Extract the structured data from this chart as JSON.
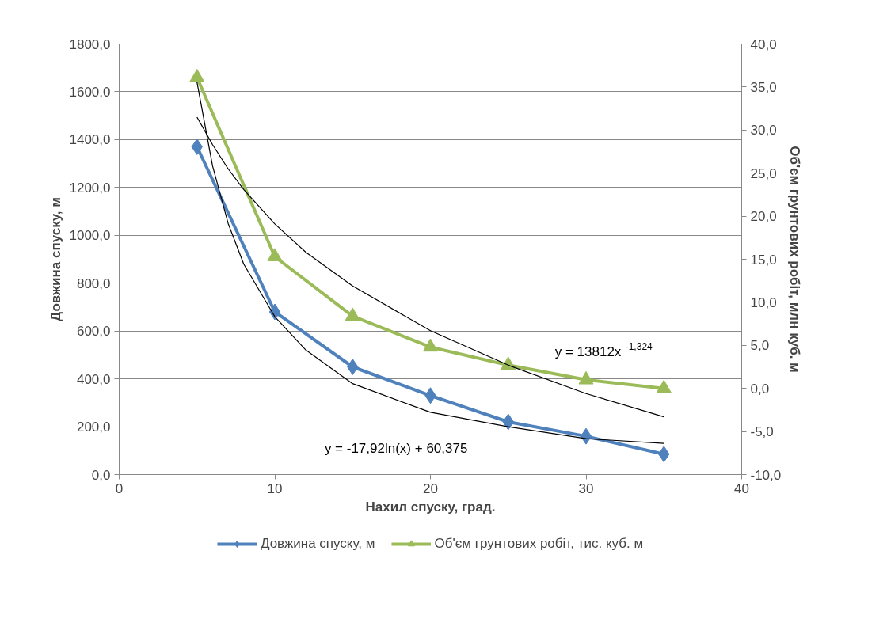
{
  "chart_data": {
    "type": "line",
    "xlabel": "Нахил спуску, град.",
    "ylabel": "Довжина спуску, м",
    "y2label": "Об'єм грунтових робіт, млн куб. м",
    "x": [
      5,
      10,
      15,
      20,
      25,
      30,
      35
    ],
    "series": [
      {
        "name": "Довжина спуску, м",
        "color": "#4f81bd",
        "marker": "diamond",
        "values": [
          1370,
          680,
          450,
          330,
          220,
          160,
          85
        ]
      },
      {
        "name": "Об'єм грунтових робіт, тис. куб. м",
        "color": "#9bbb59",
        "marker": "triangle",
        "axis": "y2",
        "values": [
          36.1,
          15.3,
          8.4,
          4.8,
          2.7,
          1.0,
          0.0
        ]
      },
      {
        "color": "#000000",
        "marker": "none",
        "x": [
          5,
          6,
          7,
          8,
          10,
          12,
          15,
          20,
          25,
          30,
          35
        ],
        "values": [
          1640,
          1290,
          1050,
          880,
          660,
          520,
          380,
          260,
          200,
          150,
          130
        ]
      },
      {
        "color": "#000000",
        "marker": "none",
        "axis": "y2",
        "x": [
          5,
          6,
          7,
          8,
          10,
          12,
          15,
          20,
          25,
          30,
          35
        ],
        "values": [
          31.5,
          28.3,
          25.5,
          23.1,
          19.1,
          15.8,
          11.9,
          6.7,
          2.7,
          -0.6,
          -3.3
        ]
      }
    ],
    "xlim": [
      0,
      40
    ],
    "xticks": [
      0,
      10,
      20,
      30,
      40
    ],
    "ylim": [
      0,
      1800
    ],
    "yticks": [
      {
        "value": 0,
        "label": "0,0"
      },
      {
        "value": 200,
        "label": "200,0"
      },
      {
        "value": 400,
        "label": "400,0"
      },
      {
        "value": 600,
        "label": "600,0"
      },
      {
        "value": 800,
        "label": "800,0"
      },
      {
        "value": 1000,
        "label": "1000,0"
      },
      {
        "value": 1200,
        "label": "1200,0"
      },
      {
        "value": 1400,
        "label": "1400,0"
      },
      {
        "value": 1600,
        "label": "1600,0"
      },
      {
        "value": 1800,
        "label": "1800,0"
      }
    ],
    "y2lim": [
      -10,
      40
    ],
    "y2ticks": [
      {
        "value": -10,
        "label": "-10,0"
      },
      {
        "value": -5,
        "label": "-5,0"
      },
      {
        "value": 0,
        "label": "0,0"
      },
      {
        "value": 5,
        "label": "5,0"
      },
      {
        "value": 10,
        "label": "10,0"
      },
      {
        "value": 15,
        "label": "15,0"
      },
      {
        "value": 20,
        "label": "20,0"
      },
      {
        "value": 25,
        "label": "25,0"
      },
      {
        "value": 30,
        "label": "30,0"
      },
      {
        "value": 35,
        "label": "35,0"
      },
      {
        "value": 40,
        "label": "40,0"
      }
    ],
    "annotations": [
      "y = 13812x$^{-1,324}$",
      "y = -17,92ln(x) + 60,375"
    ],
    "grid": "y",
    "legend": "bottom",
    "line_style": "solid"
  }
}
